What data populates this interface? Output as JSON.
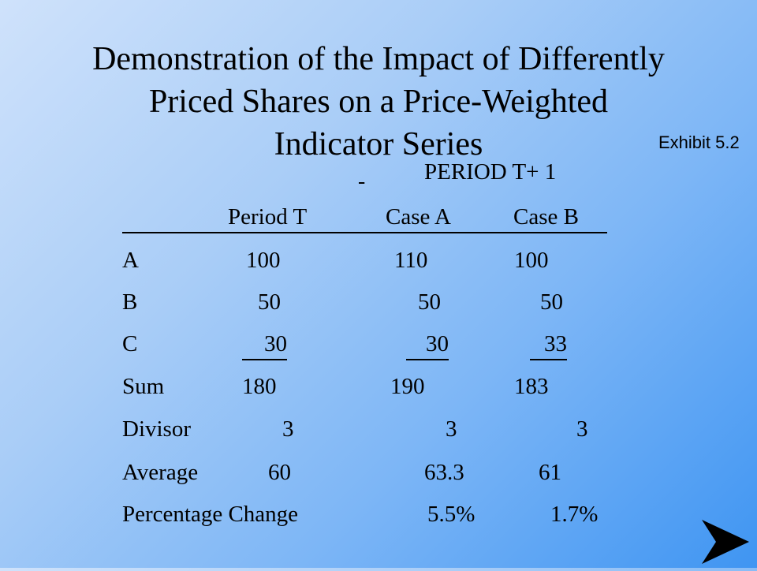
{
  "title_lines": [
    "Demonstration of the Impact of Differently",
    "Priced Shares on a Price-Weighted",
    "Indicator Series"
  ],
  "exhibit_label": "Exhibit 5.2",
  "period_heading": "PERIOD  T+ 1",
  "columns": [
    "Period T",
    "Case A",
    "Case B"
  ],
  "rows": [
    {
      "label": "A",
      "values": [
        "100",
        "110",
        "100"
      ]
    },
    {
      "label": "B",
      "values": [
        "50",
        "50",
        "50"
      ]
    },
    {
      "label": "C",
      "values": [
        "30",
        "30",
        "33"
      ]
    },
    {
      "label": "Sum",
      "values": [
        "180",
        "190",
        "183"
      ]
    },
    {
      "label": "Divisor",
      "values": [
        "3",
        "3",
        "3"
      ]
    },
    {
      "label": "Average",
      "values": [
        "60",
        "63.3",
        "61"
      ]
    },
    {
      "label": "Percentage Change",
      "values": [
        "",
        "5.5%",
        "1.7%"
      ]
    }
  ],
  "navigation": {
    "next_icon": "next-arrow-icon"
  }
}
